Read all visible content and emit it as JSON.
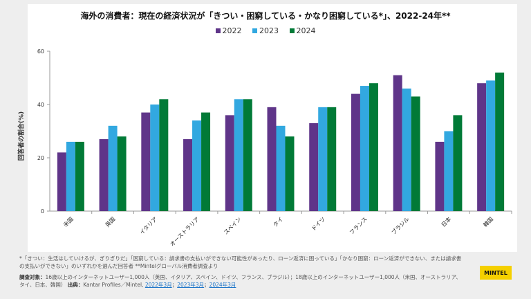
{
  "title": "海外の消費者：現在の経済状況が「きつい・困窮している・かなり困窮している*」、2022-24年**",
  "chart_data": {
    "type": "bar",
    "title": "海外の消費者：現在の経済状況が「きつい・困窮している・かなり困窮している*」、2022-24年**",
    "ylabel": "回答者の割合(%)",
    "xlabel": "",
    "ylim": [
      0,
      60
    ],
    "yticks": [
      "0",
      "20",
      "40",
      "60"
    ],
    "grid": false,
    "legend": "top",
    "categories": [
      "米国",
      "英国",
      "イタリア",
      "オーストラリア",
      "スペイン",
      "タイ",
      "ドイツ",
      "フランス",
      "ブラジル",
      "日本",
      "韓国"
    ],
    "series": [
      {
        "name": "2022",
        "color": "#5f3589",
        "values": [
          22,
          27,
          37,
          27,
          36,
          39,
          33,
          44,
          51,
          26,
          48
        ]
      },
      {
        "name": "2023",
        "color": "#32a8e0",
        "values": [
          26,
          32,
          40,
          34,
          42,
          32,
          39,
          47,
          46,
          30,
          49
        ]
      },
      {
        "name": "2024",
        "color": "#017a37",
        "values": [
          26,
          28,
          42,
          37,
          42,
          28,
          39,
          48,
          43,
          36,
          52
        ]
      }
    ]
  },
  "notes": {
    "line1": "*「きつい：生活はしていけるが、ぎりぎりだ」「困窮している：請求書の支払いができない可能性があったり、ローン返済に困っている」「かなり困窮：ローン返済ができない、または請求書の支払いができない」のいずれかを選んだ回答者 **Mintelグローバル消費者調査より",
    "survey_label": "調査対象：",
    "survey_text": "16歳以上のインターネットユーザー1,000人（英国、イタリア、スペイン、ドイツ、フランス、ブラジル）；18歳以上のインターネットユーザー1,000人（米国、オーストラリア、タイ、日本、韓国）",
    "source_label": "出典：",
    "source_text": "Kantar Profiles／Mintel, ",
    "links": [
      "2022年3月",
      "2023年3月",
      "2024年3月"
    ]
  },
  "logo": "MINTEL"
}
